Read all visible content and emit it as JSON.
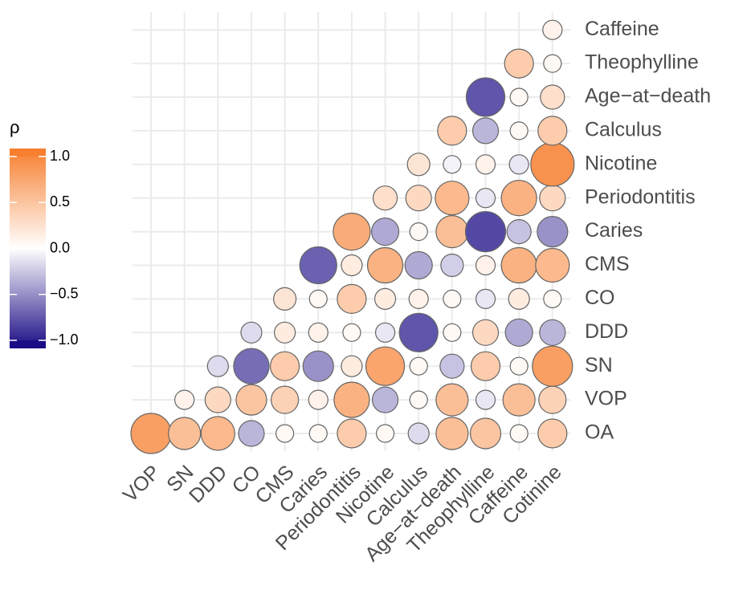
{
  "chart_data": {
    "type": "corr_circle",
    "x": [
      "VOP",
      "SN",
      "DDD",
      "CO",
      "CMS",
      "Caries",
      "Periodontitis",
      "Nicotine",
      "Calculus",
      "Age−at−death",
      "Theophylline",
      "Caffeine",
      "Cotinine"
    ],
    "y": [
      "OA",
      "VOP",
      "SN",
      "DDD",
      "CO",
      "CMS",
      "Caries",
      "Periodontitis",
      "Nicotine",
      "Calculus",
      "Age−at−death",
      "Theophylline",
      "Caffeine"
    ],
    "values": [
      [
        0.75,
        0.5,
        0.55,
        -0.3,
        0.05,
        0.05,
        0.4,
        0.05,
        -0.15,
        0.5,
        0.45,
        0.05,
        0.4
      ],
      [
        null,
        0.1,
        0.3,
        0.45,
        0.35,
        0.1,
        0.6,
        -0.3,
        0.05,
        0.5,
        -0.1,
        0.5,
        0.35
      ],
      [
        null,
        null,
        -0.15,
        -0.6,
        0.4,
        -0.45,
        0.15,
        0.7,
        0.05,
        -0.25,
        0.4,
        0.05,
        0.75
      ],
      [
        null,
        null,
        null,
        -0.15,
        0.15,
        0.1,
        0.05,
        -0.1,
        -0.7,
        0.05,
        0.3,
        -0.35,
        -0.3
      ],
      [
        null,
        null,
        null,
        null,
        0.2,
        0.05,
        0.4,
        0.15,
        0.1,
        0.05,
        -0.1,
        0.15,
        0.05
      ],
      [
        null,
        null,
        null,
        null,
        null,
        -0.65,
        0.15,
        0.6,
        -0.35,
        -0.2,
        0.1,
        0.6,
        0.55
      ],
      [
        null,
        null,
        null,
        null,
        null,
        null,
        0.65,
        -0.35,
        0.05,
        0.5,
        -0.75,
        -0.25,
        -0.45
      ],
      [
        null,
        null,
        null,
        null,
        null,
        null,
        null,
        0.25,
        0.3,
        0.55,
        -0.1,
        0.6,
        0.3
      ],
      [
        null,
        null,
        null,
        null,
        null,
        null,
        null,
        null,
        0.2,
        -0.05,
        0.1,
        -0.1,
        0.85
      ],
      [
        null,
        null,
        null,
        null,
        null,
        null,
        null,
        null,
        null,
        0.4,
        -0.3,
        0.05,
        0.4
      ],
      [
        null,
        null,
        null,
        null,
        null,
        null,
        null,
        null,
        null,
        null,
        -0.7,
        0.05,
        0.25
      ],
      [
        null,
        null,
        null,
        null,
        null,
        null,
        null,
        null,
        null,
        null,
        null,
        0.4,
        0.05
      ],
      [
        null,
        null,
        null,
        null,
        null,
        null,
        null,
        null,
        null,
        null,
        null,
        null,
        0.1
      ]
    ],
    "legend": {
      "title": "ρ",
      "lim": [
        -1,
        1
      ],
      "ticks": [
        {
          "value": 1,
          "label": "1.0"
        },
        {
          "value": 0.5,
          "label": "0.5"
        },
        {
          "value": 0,
          "label": "0.0"
        },
        {
          "value": -0.5,
          "label": "−0.5"
        },
        {
          "value": -1,
          "label": "−1.0"
        }
      ]
    },
    "colors": {
      "low": "#1a0c85",
      "mid": "#ffffff",
      "high": "#f77f2f"
    },
    "grid": true
  }
}
